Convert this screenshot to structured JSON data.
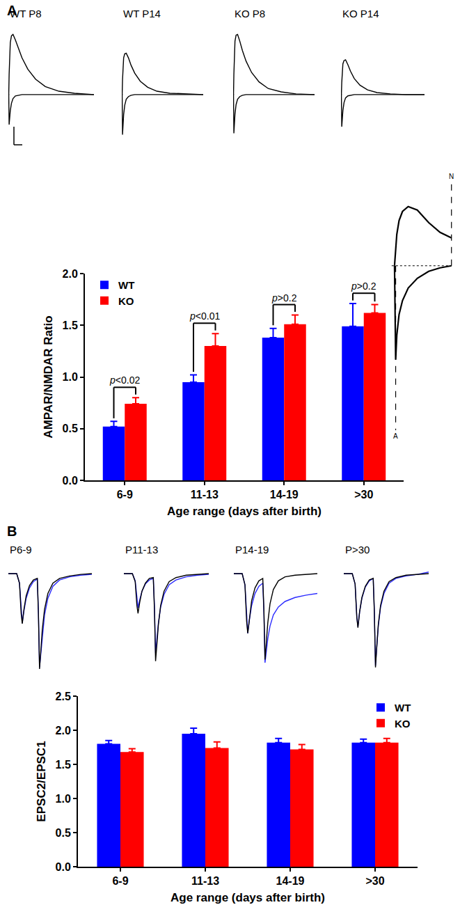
{
  "chart_data": [
    {
      "type": "line",
      "panel": "A",
      "x": [
        0,
        1,
        2,
        3,
        5,
        8,
        12,
        18,
        25,
        35,
        50,
        70,
        95,
        130,
        170,
        220
      ],
      "panels": [
        {
          "title": "WT P8",
          "series": [
            {
              "color": "#000000",
              "values": [
                0,
                0,
                30,
                55,
                78,
                88,
                90,
                82,
                70,
                55,
                38,
                23,
                12,
                5,
                2,
                0
              ]
            },
            {
              "color": "#000000",
              "values": [
                0,
                0,
                -45,
                -36,
                -24,
                -13,
                -6,
                -2,
                -1,
                0,
                0,
                0,
                0,
                0,
                0,
                0
              ]
            }
          ]
        },
        {
          "title": "WT P14",
          "series": [
            {
              "color": "#000000",
              "values": [
                0,
                0,
                22,
                40,
                55,
                61,
                62,
                55,
                44,
                32,
                20,
                11,
                5,
                2,
                1,
                0
              ]
            },
            {
              "color": "#000000",
              "values": [
                0,
                0,
                -60,
                -46,
                -30,
                -16,
                -7,
                -3,
                -1,
                0,
                0,
                0,
                0,
                0,
                0,
                0
              ]
            }
          ]
        },
        {
          "title": "KO P8",
          "series": [
            {
              "color": "#000000",
              "values": [
                0,
                0,
                30,
                56,
                80,
                89,
                90,
                80,
                66,
                50,
                33,
                19,
                9,
                4,
                1,
                0
              ]
            },
            {
              "color": "#000000",
              "values": [
                0,
                0,
                -58,
                -45,
                -29,
                -15,
                -7,
                -3,
                -1,
                0,
                0,
                0,
                0,
                0,
                0,
                0
              ]
            }
          ]
        },
        {
          "title": "KO P14",
          "series": [
            {
              "color": "#000000",
              "values": [
                0,
                0,
                18,
                34,
                46,
                51,
                52,
                45,
                35,
                24,
                14,
                7,
                3,
                1,
                0,
                0
              ]
            },
            {
              "color": "#000000",
              "values": [
                0,
                0,
                -48,
                -37,
                -24,
                -12,
                -5,
                -2,
                -1,
                0,
                0,
                0,
                0,
                0,
                0,
                0
              ]
            }
          ]
        }
      ],
      "tick_labels": false
    },
    {
      "type": "bar",
      "categories": [
        "6-9",
        "11-13",
        "14-19",
        ">30"
      ],
      "series": [
        {
          "name": "WT",
          "color": "#0000ff",
          "values": [
            0.52,
            0.95,
            1.38,
            1.49
          ],
          "errors": [
            0.05,
            0.07,
            0.09,
            0.22
          ]
        },
        {
          "name": "KO",
          "color": "#ff0000",
          "values": [
            0.74,
            1.3,
            1.51,
            1.62
          ],
          "errors": [
            0.06,
            0.12,
            0.09,
            0.08
          ]
        }
      ],
      "ylim": [
        0,
        2
      ],
      "yticks": [
        {
          "value": 0,
          "label": "0.0"
        },
        0.5,
        {
          "value": 1,
          "label": "1.0"
        },
        1.5,
        {
          "value": 2,
          "label": "2.0"
        }
      ],
      "ylabel": "AMPAR/NMDAR Ratio",
      "xlabel": "Age range (days after birth)",
      "legend": "upper left",
      "grid": false,
      "comparisons": [
        "p<0.02",
        "p<0.01",
        "p>0.2",
        "p>0.2"
      ]
    },
    {
      "type": "line",
      "x": [
        0,
        1,
        2,
        4,
        7,
        12,
        20,
        30,
        40,
        50
      ],
      "series": [
        {
          "color": "#000000",
          "values": [
            0,
            25,
            45,
            65,
            78,
            85,
            80,
            62,
            48,
            40
          ]
        },
        {
          "color": "#000000",
          "values": [
            0,
            -135,
            -100,
            -70,
            -50,
            -32,
            -18,
            -8,
            -3,
            0
          ]
        }
      ],
      "annotations": [
        "A",
        "N"
      ],
      "tick_labels": false
    },
    {
      "type": "line",
      "panel": "B",
      "x": [
        0,
        15,
        20,
        23,
        25,
        28,
        32,
        38,
        45,
        52,
        54,
        56,
        58,
        61,
        65,
        71,
        80,
        92,
        110,
        130,
        150
      ],
      "panels": [
        {
          "title": "P6-9",
          "series": [
            {
              "color": "#2b2bff",
              "values": [
                0,
                0,
                -12,
                -48,
                -62,
                -47,
                -31,
                -18,
                -10,
                -7,
                -48,
                -118,
                -103,
                -76,
                -52,
                -31,
                -16,
                -8,
                -4,
                -2,
                -1
              ]
            },
            {
              "color": "#000000",
              "values": [
                0,
                0,
                -12,
                -50,
                -63,
                -45,
                -28,
                -15,
                -8,
                -6,
                -50,
                -120,
                -100,
                -70,
                -45,
                -25,
                -12,
                -6,
                -3,
                -1,
                0
              ]
            }
          ]
        },
        {
          "title": "P11-13",
          "series": [
            {
              "color": "#2b2bff",
              "values": [
                0,
                0,
                -9,
                -34,
                -43,
                -33,
                -22,
                -13,
                -8,
                -6,
                -40,
                -100,
                -86,
                -62,
                -42,
                -26,
                -14,
                -8,
                -4,
                -2,
                -1
              ]
            },
            {
              "color": "#000000",
              "values": [
                0,
                0,
                -10,
                -40,
                -50,
                -36,
                -22,
                -12,
                -6,
                -5,
                -45,
                -110,
                -92,
                -64,
                -40,
                -22,
                -10,
                -5,
                -2,
                -1,
                0
              ]
            }
          ]
        },
        {
          "title": "P14-19",
          "series": [
            {
              "color": "#2b2bff",
              "values": [
                0,
                0,
                -14,
                -58,
                -75,
                -58,
                -40,
                -25,
                -16,
                -12,
                -48,
                -112,
                -100,
                -82,
                -66,
                -52,
                -42,
                -35,
                -30,
                -27,
                -25
              ]
            },
            {
              "color": "#000000",
              "values": [
                0,
                0,
                -14,
                -60,
                -75,
                -55,
                -34,
                -18,
                -9,
                -6,
                -45,
                -108,
                -90,
                -62,
                -38,
                -20,
                -9,
                -4,
                -2,
                -1,
                0
              ]
            }
          ]
        },
        {
          "title": "P>30",
          "series": [
            {
              "color": "#2b2bff",
              "values": [
                0,
                0,
                -13,
                -54,
                -67,
                -48,
                -31,
                -17,
                -9,
                -6,
                -47,
                -116,
                -95,
                -66,
                -42,
                -25,
                -12,
                -6,
                -3,
                -1,
                2
              ]
            },
            {
              "color": "#000000",
              "values": [
                0,
                0,
                -13,
                -55,
                -68,
                -48,
                -30,
                -16,
                -8,
                -6,
                -48,
                -118,
                -95,
                -64,
                -40,
                -22,
                -10,
                -5,
                -2,
                -1,
                0
              ]
            }
          ]
        }
      ],
      "tick_labels": false
    },
    {
      "type": "bar",
      "categories": [
        "6-9",
        "11-13",
        "14-19",
        ">30"
      ],
      "series": [
        {
          "name": "WT",
          "color": "#0000ff",
          "values": [
            1.8,
            1.95,
            1.82,
            1.82
          ],
          "errors": [
            0.05,
            0.08,
            0.06,
            0.05
          ]
        },
        {
          "name": "KO",
          "color": "#ff0000",
          "values": [
            1.68,
            1.74,
            1.72,
            1.82
          ],
          "errors": [
            0.05,
            0.09,
            0.07,
            0.06
          ]
        }
      ],
      "ylim": [
        0,
        2.5
      ],
      "yticks": [
        {
          "value": 0,
          "label": "0.0"
        },
        0.5,
        {
          "value": 1,
          "label": "1.0"
        },
        1.5,
        {
          "value": 2,
          "label": "2.0"
        },
        2.5
      ],
      "ylabel": "EPSC2/EPSC1",
      "xlabel": "Age range (days after birth)",
      "legend": "upper right",
      "grid": false
    }
  ]
}
